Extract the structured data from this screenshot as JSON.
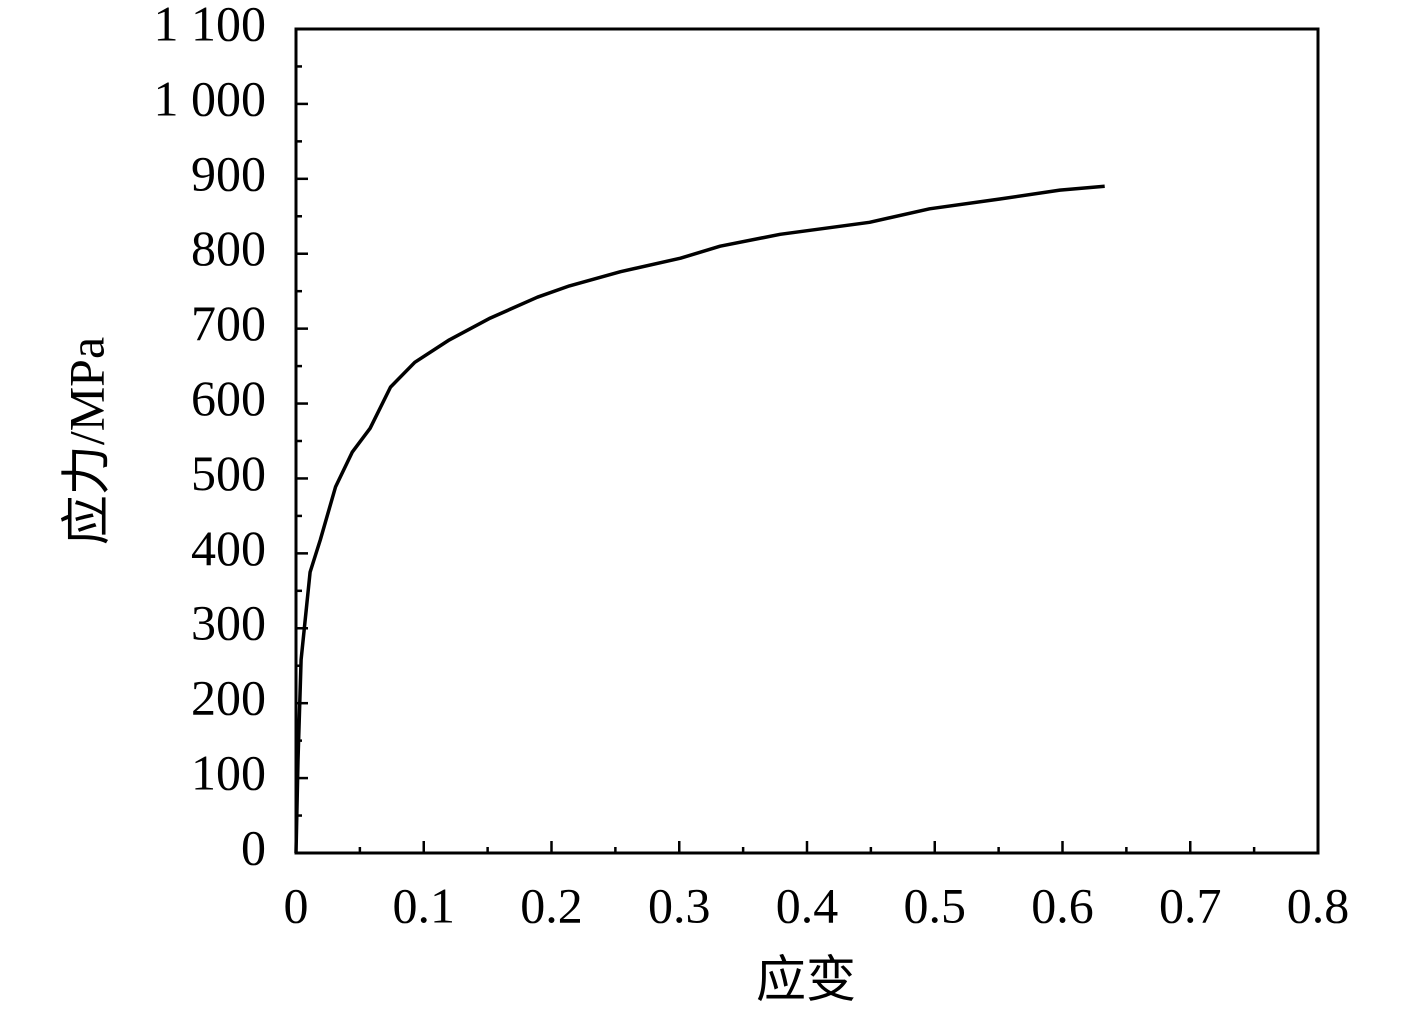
{
  "chart_data": {
    "type": "line",
    "x_label": "应变",
    "y_label": "应力/MPa",
    "x": [
      0,
      0.0016,
      0.004,
      0.011,
      0.019,
      0.031,
      0.044,
      0.058,
      0.074,
      0.093,
      0.12,
      0.152,
      0.189,
      0.214,
      0.254,
      0.301,
      0.332,
      0.379,
      0.449,
      0.496,
      0.551,
      0.598,
      0.633
    ],
    "series": [
      {
        "color": "#000000",
        "values": [
          0,
          124,
          258,
          375,
          418,
          489,
          535,
          567,
          622,
          655,
          685,
          714,
          742,
          757,
          776,
          794,
          810,
          826,
          842,
          860,
          873,
          885,
          890
        ]
      }
    ],
    "xlim": [
      0,
      0.8
    ],
    "xticks": [
      0,
      0.1,
      0.2,
      0.3,
      0.4,
      0.5,
      0.6,
      0.7,
      0.8
    ],
    "ylim": [
      0,
      1100
    ],
    "yticks": [
      0,
      100,
      200,
      300,
      400,
      500,
      600,
      700,
      800,
      900,
      {
        "value": 1000,
        "label": "1 000"
      },
      {
        "value": 1100,
        "label": "1 100"
      }
    ],
    "grid": false
  }
}
